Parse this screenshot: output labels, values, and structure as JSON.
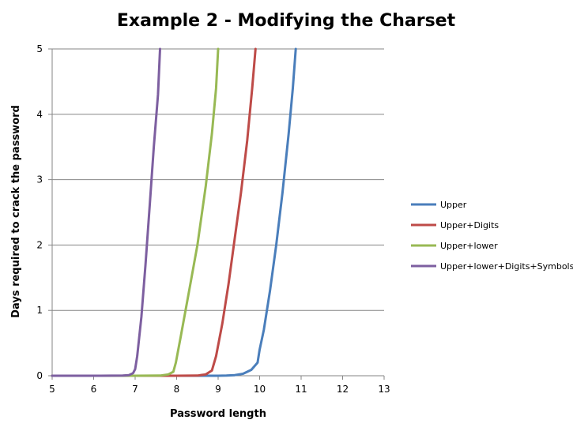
{
  "chart_data": {
    "type": "line",
    "title": "Example 2 - Modifying the Charset",
    "xlabel": "Password length",
    "ylabel": "Days required to crack the password",
    "xlim": [
      5,
      13
    ],
    "ylim": [
      0,
      5
    ],
    "x_ticks": [
      5,
      6,
      7,
      8,
      9,
      10,
      11,
      12,
      13
    ],
    "y_ticks": [
      0,
      1,
      2,
      3,
      4,
      5
    ],
    "grid": true,
    "legend_position": "right",
    "series": [
      {
        "name": "Upper",
        "color": "#4a7ebb",
        "x": [
          5,
          6,
          7,
          8,
          9,
          9.2,
          9.4,
          9.6,
          9.8,
          9.95,
          10.0,
          10.1,
          10.25,
          10.4,
          10.55,
          10.7,
          10.8,
          10.87
        ],
        "y": [
          0,
          0,
          0,
          0,
          0,
          0.002,
          0.01,
          0.03,
          0.09,
          0.2,
          0.4,
          0.7,
          1.3,
          2.0,
          2.8,
          3.7,
          4.4,
          5
        ]
      },
      {
        "name": "Upper+Digits",
        "color": "#be4b48",
        "x": [
          5,
          6,
          7,
          8,
          8.5,
          8.7,
          8.85,
          8.95,
          9.1,
          9.25,
          9.4,
          9.55,
          9.7,
          9.82,
          9.9
        ],
        "y": [
          0,
          0,
          0,
          0,
          0.002,
          0.02,
          0.08,
          0.3,
          0.8,
          1.4,
          2.1,
          2.8,
          3.6,
          4.4,
          5
        ]
      },
      {
        "name": "Upper+lower",
        "color": "#98b954",
        "x": [
          5,
          6,
          7,
          7.6,
          7.8,
          7.92,
          7.98,
          8.1,
          8.3,
          8.5,
          8.7,
          8.85,
          8.95,
          9.0
        ],
        "y": [
          0,
          0,
          0,
          0.002,
          0.02,
          0.06,
          0.2,
          0.6,
          1.3,
          2.0,
          2.9,
          3.7,
          4.4,
          5
        ]
      },
      {
        "name": "Upper+lower+Digits+Symbols",
        "color": "#7d5fa0",
        "x": [
          5,
          6,
          6.7,
          6.85,
          6.95,
          7.0,
          7.05,
          7.15,
          7.25,
          7.35,
          7.45,
          7.55,
          7.6
        ],
        "y": [
          0,
          0,
          0.002,
          0.01,
          0.04,
          0.1,
          0.3,
          0.9,
          1.7,
          2.6,
          3.5,
          4.3,
          5
        ]
      }
    ]
  }
}
